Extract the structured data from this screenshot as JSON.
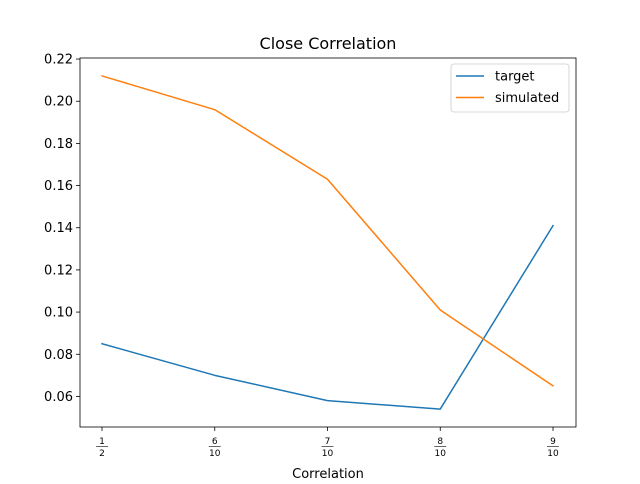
{
  "chart_data": {
    "type": "line",
    "title": "Close Correlation",
    "xlabel": "Correlation",
    "ylabel": "",
    "categories": [
      {
        "num": "1",
        "den": "2"
      },
      {
        "num": "6",
        "den": "10"
      },
      {
        "num": "7",
        "den": "10"
      },
      {
        "num": "8",
        "den": "10"
      },
      {
        "num": "9",
        "den": "10"
      }
    ],
    "series": [
      {
        "name": "target",
        "color": "#1f77b4",
        "values": [
          0.085,
          0.07,
          0.058,
          0.054,
          0.141
        ]
      },
      {
        "name": "simulated",
        "color": "#ff7f0e",
        "values": [
          0.212,
          0.196,
          0.163,
          0.101,
          0.065
        ]
      }
    ],
    "ylim": [
      0.0455,
      0.2205
    ],
    "yticks": [
      "0.06",
      "0.08",
      "0.10",
      "0.12",
      "0.14",
      "0.16",
      "0.18",
      "0.20",
      "0.22"
    ],
    "grid": false,
    "legend_position": "top-right"
  }
}
